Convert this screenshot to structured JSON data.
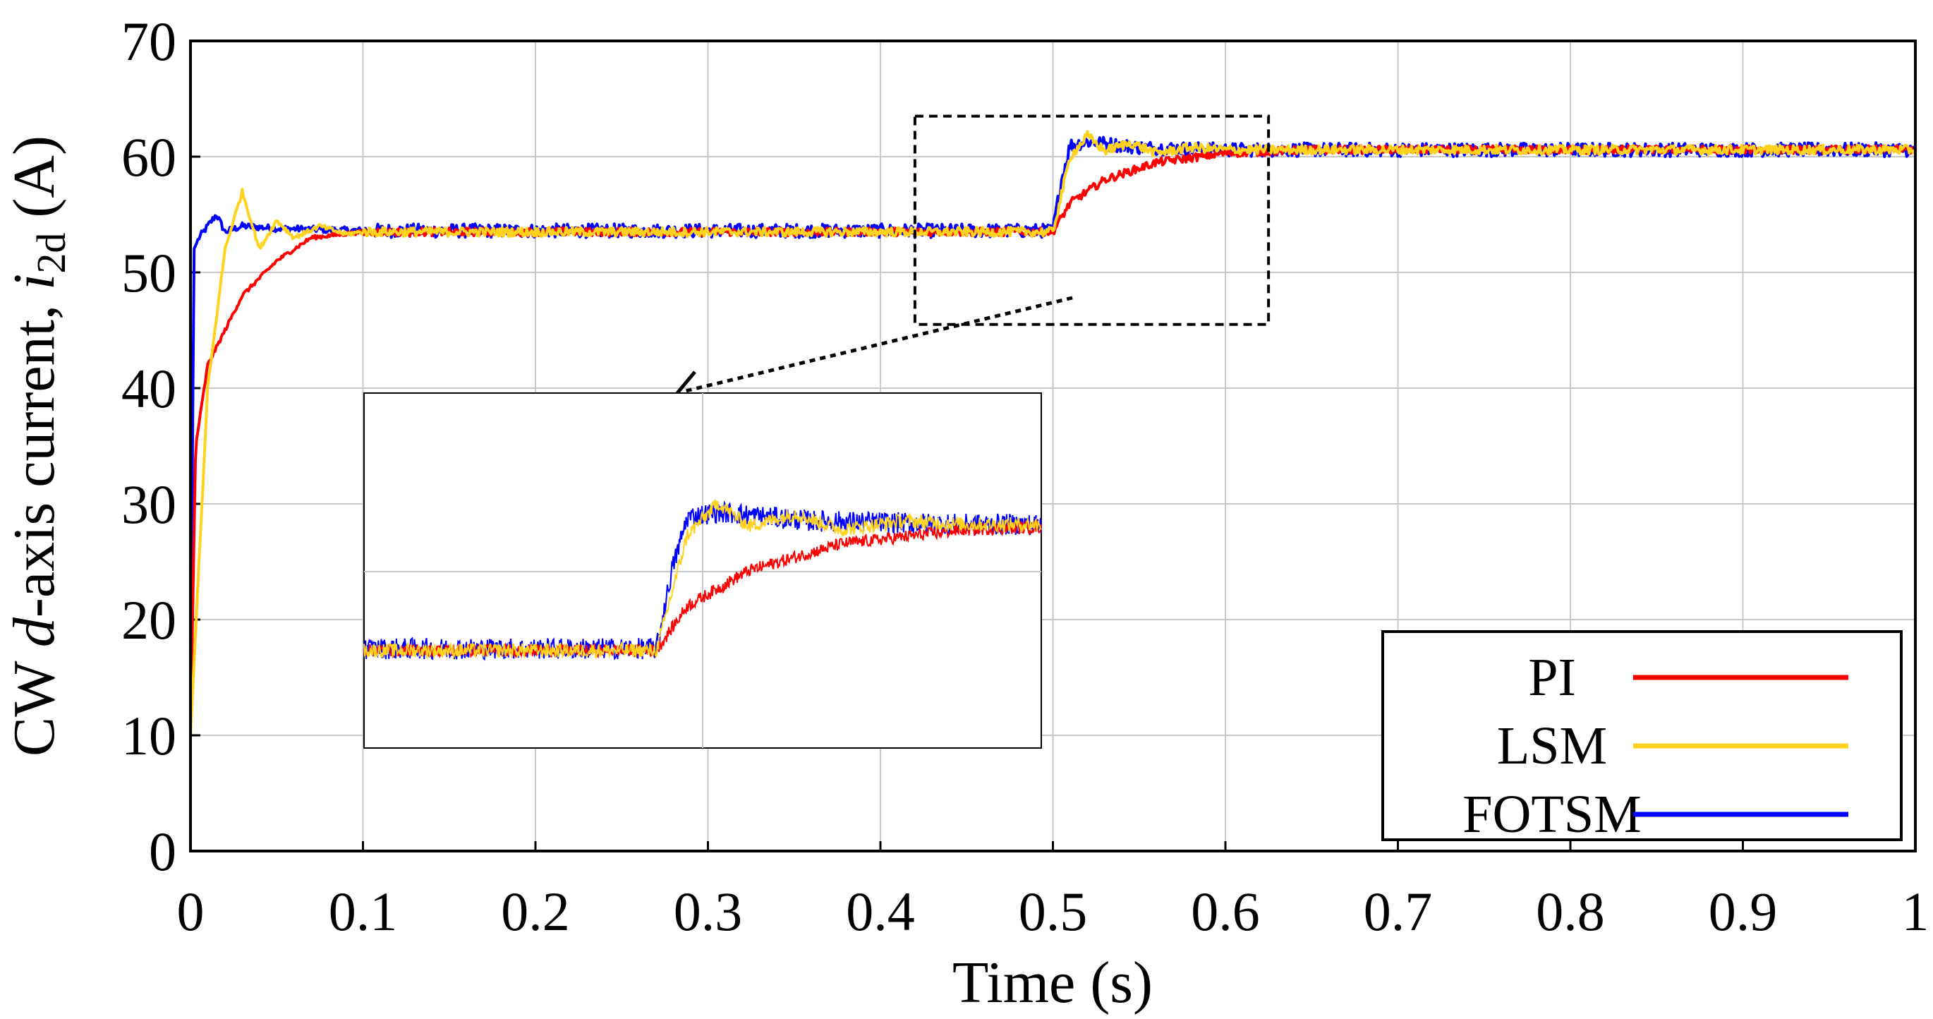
{
  "chart_data": {
    "type": "line",
    "title": "",
    "xlabel": "Time (s)",
    "ylabel_parts": {
      "prefix": "CW ",
      "italic1": "d",
      "mid": "-axis current, ",
      "italic2": "i",
      "subscript": "2d",
      "suffix": " (A)"
    },
    "xlim": [
      0,
      1
    ],
    "ylim": [
      0,
      70
    ],
    "x_ticks": [
      "0",
      "0.1",
      "0.2",
      "0.3",
      "0.4",
      "0.5",
      "0.6",
      "0.7",
      "0.8",
      "0.9",
      "1"
    ],
    "y_ticks": [
      "0",
      "10",
      "20",
      "30",
      "40",
      "50",
      "60",
      "70"
    ],
    "grid": true,
    "legend_position": "bottom-right",
    "series": [
      {
        "name": "PI",
        "color": "#ff0000",
        "x": [
          0,
          0.003,
          0.01,
          0.02,
          0.03,
          0.05,
          0.07,
          0.1,
          0.3,
          0.5,
          0.51,
          0.53,
          0.56,
          0.6,
          0.65,
          0.7,
          1.0
        ],
        "y": [
          10,
          35,
          42,
          45,
          48,
          51,
          53,
          53.5,
          53.5,
          53.5,
          56,
          58,
          59.5,
          60.3,
          60.6,
          60.6,
          60.6
        ]
      },
      {
        "name": "LSM",
        "color": "#ffd21e",
        "x": [
          0,
          0.01,
          0.02,
          0.03,
          0.04,
          0.05,
          0.06,
          0.075,
          0.09,
          0.1,
          0.3,
          0.5,
          0.51,
          0.52,
          0.53,
          0.545,
          0.56,
          0.58,
          0.6,
          1.0
        ],
        "y": [
          10,
          40,
          52,
          57,
          52,
          54.5,
          53,
          54,
          53.3,
          53.5,
          53.5,
          53.5,
          60,
          61.8,
          60.5,
          61.2,
          60.3,
          60.8,
          60.6,
          60.6
        ]
      },
      {
        "name": "FOTSM",
        "color": "#0000ff",
        "x": [
          0,
          0.002,
          0.005,
          0.01,
          0.015,
          0.02,
          0.03,
          0.05,
          0.1,
          0.3,
          0.5,
          0.505,
          0.51,
          0.52,
          0.55,
          0.6,
          1.0
        ],
        "y": [
          10,
          52,
          53,
          54,
          55,
          53.5,
          54,
          53.8,
          53.6,
          53.6,
          53.6,
          58,
          61,
          61.3,
          60.8,
          60.6,
          60.6
        ]
      }
    ],
    "annotations": [
      {
        "type": "zoom-region",
        "x_range": [
          0.42,
          0.625
        ],
        "y_range": [
          45.5,
          63.5
        ]
      },
      {
        "type": "inset",
        "description": "zoomed view of step at t = 0.5 s"
      }
    ]
  }
}
